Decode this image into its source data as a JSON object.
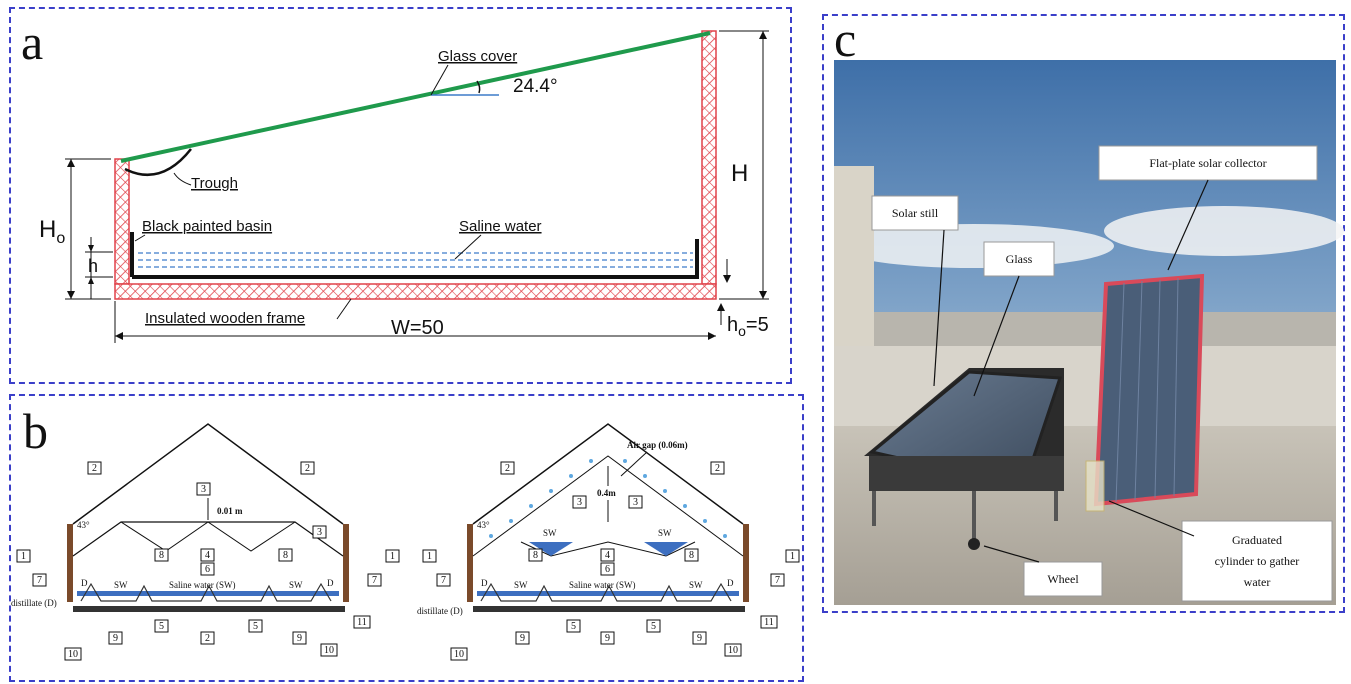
{
  "panel_a": {
    "letter": "a",
    "glass_cover": "Glass cover",
    "angle": "24.4°",
    "trough": "Trough",
    "black_basin": "Black painted basin",
    "saline_water": "Saline water",
    "insulated_frame": "Insulated wooden frame",
    "Ho_main": "H",
    "Ho_sub": "o",
    "h": "h",
    "H": "H",
    "W": "W=50",
    "ho_main": "h",
    "ho_sub": "o",
    "ho_value": "=5"
  },
  "panel_b": {
    "letter": "b",
    "left": {
      "n1": "1",
      "n2": "2",
      "n3": "3",
      "n4": "4",
      "n5": "5",
      "n6": "6",
      "n7": "7",
      "n8": "8",
      "n9": "9",
      "n10": "10",
      "n11": "11",
      "dim": "0.01 m",
      "angle": "43°",
      "sw": "SW",
      "saline": "Saline water (SW)",
      "d": "D",
      "distillate": "distillate (D)"
    },
    "right": {
      "n1": "1",
      "n2": "2",
      "n3": "3",
      "n4": "4",
      "n5": "5",
      "n6": "6",
      "n7": "7",
      "n8": "8",
      "n9": "9",
      "n10": "10",
      "n11": "11",
      "air_gap": "Air gap (0.06m)",
      "dim": "0.4m",
      "angle": "43°",
      "sw": "SW",
      "saline": "Saline water (SW)",
      "d": "D",
      "distillate": "distillate (D)"
    }
  },
  "panel_c": {
    "letter": "c",
    "flat_plate": "Flat-plate solar collector",
    "solar_still": "Solar still",
    "glass": "Glass",
    "wheel": "Wheel",
    "cylinder_line1": "Graduated",
    "cylinder_line2": "cylinder to gather",
    "cylinder_line3": "water"
  },
  "colors": {
    "panel_border": "#3b3fc9",
    "glass_green": "#1f9a4c",
    "hatch_red": "#e0424a",
    "water_blue": "#3d7cc9",
    "wood_brown": "#7a4a2a"
  }
}
